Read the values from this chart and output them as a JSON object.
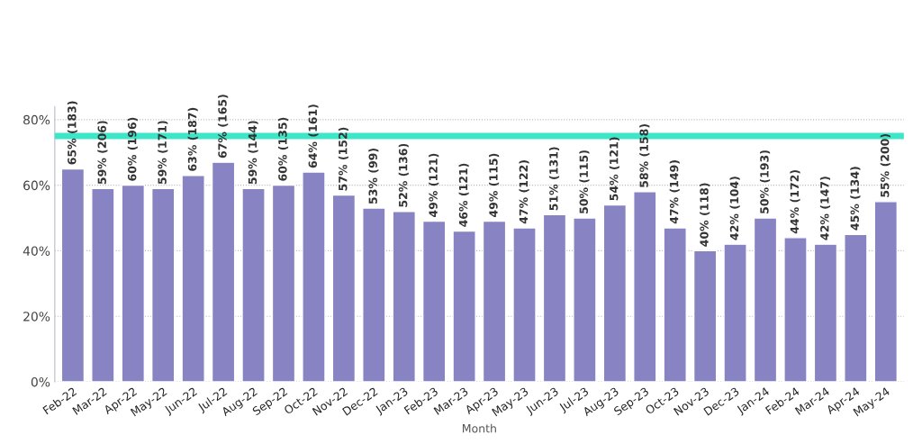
{
  "chart_data": {
    "type": "bar",
    "xlabel": "Month",
    "categories": [
      "Feb-22",
      "Mar-22",
      "Apr-22",
      "May-22",
      "Jun-22",
      "Jul-22",
      "Aug-22",
      "Sep-22",
      "Oct-22",
      "Nov-22",
      "Dec-22",
      "Jan-23",
      "Feb-23",
      "Mar-23",
      "Apr-23",
      "May-23",
      "Jun-23",
      "Jul-23",
      "Aug-23",
      "Sep-23",
      "Oct-23",
      "Nov-23",
      "Dec-23",
      "Jan-24",
      "Feb-24",
      "Mar-24",
      "Apr-24",
      "May-24"
    ],
    "values": [
      65,
      59,
      60,
      59,
      63,
      67,
      59,
      60,
      64,
      57,
      53,
      52,
      49,
      46,
      49,
      47,
      51,
      50,
      54,
      58,
      47,
      40,
      42,
      50,
      44,
      42,
      45,
      55
    ],
    "value_labels": [
      "65% (183)",
      "59% (206)",
      "60% (196)",
      "59% (171)",
      "63% (187)",
      "67% (165)",
      "59% (144)",
      "60% (135)",
      "64% (161)",
      "57% (152)",
      "53% (99)",
      "52% (136)",
      "49% (121)",
      "46% (121)",
      "49% (115)",
      "47% (122)",
      "51% (131)",
      "50% (115)",
      "54% (121)",
      "58% (158)",
      "47% (149)",
      "40% (118)",
      "42% (104)",
      "50% (193)",
      "44% (172)",
      "42% (147)",
      "45% (134)",
      "55% (200)"
    ],
    "color": "#8884c4",
    "ylim": [
      0,
      84
    ],
    "yticks": [
      {
        "value": 0,
        "label": "0%"
      },
      {
        "value": 20,
        "label": "20%"
      },
      {
        "value": 40,
        "label": "40%"
      },
      {
        "value": 60,
        "label": "60%"
      },
      {
        "value": 80,
        "label": "80%"
      }
    ],
    "ref_lines": [
      {
        "axis": "y",
        "value": 75,
        "color": "#3ee6c8"
      }
    ],
    "grid": "y"
  }
}
